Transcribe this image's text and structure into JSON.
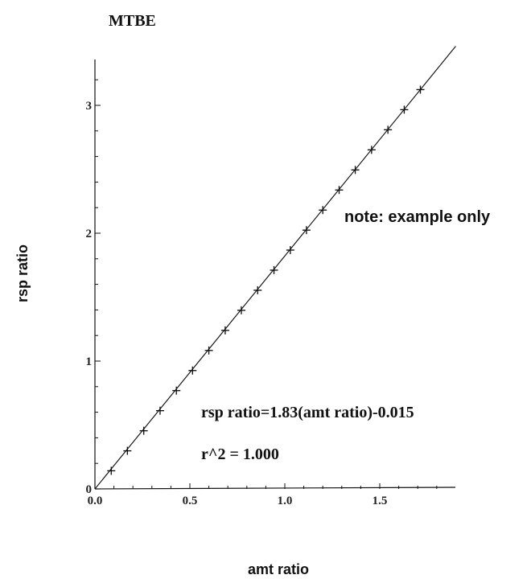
{
  "chart_data": {
    "type": "scatter",
    "title": "MTBE",
    "xlabel": "amt ratio",
    "ylabel": "rsp ratio",
    "xlim": [
      0.0,
      1.9
    ],
    "ylim": [
      0.0,
      3.4
    ],
    "x_ticks": [
      "0.0",
      "0.5",
      "1.0",
      "1.5"
    ],
    "y_ticks": [
      "0",
      "1",
      "2",
      "3"
    ],
    "grid": false,
    "legend": "none",
    "series": [
      {
        "marker": "plus",
        "x": [
          0.086,
          0.171,
          0.257,
          0.343,
          0.429,
          0.514,
          0.6,
          0.686,
          0.771,
          0.857,
          0.943,
          1.029,
          1.114,
          1.2,
          1.286,
          1.371,
          1.457,
          1.543,
          1.629,
          1.714
        ],
        "y": [
          0.142,
          0.298,
          0.455,
          0.612,
          0.769,
          0.926,
          1.083,
          1.24,
          1.397,
          1.554,
          1.711,
          1.868,
          2.024,
          2.181,
          2.338,
          2.495,
          2.652,
          2.809,
          2.966,
          3.123
        ]
      }
    ],
    "fit": {
      "slope": 1.83,
      "intercept": -0.015,
      "x_range": [
        0.0,
        1.9
      ]
    },
    "annotations": {
      "note": "note:  example only",
      "equation": "rsp ratio=1.83(amt ratio)-0.015",
      "r2": "r^2 = 1.000"
    }
  }
}
